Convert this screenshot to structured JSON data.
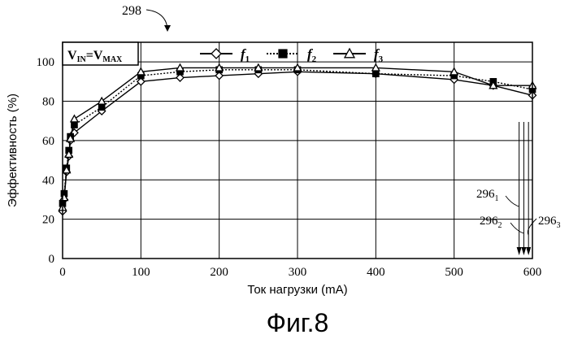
{
  "figure": {
    "number": "298",
    "caption": "Фиг.8",
    "condition": {
      "v": "V",
      "in_sub": "IN",
      "eq": "=",
      "max_sub": "MAX"
    }
  },
  "chart_data": {
    "type": "line",
    "xlabel_text": "Ток нагрузки",
    "xlabel_unit": "(mA)",
    "ylabel_text": "Эффективность",
    "ylabel_unit": "(%)",
    "xlim": [
      0,
      600
    ],
    "ylim": [
      0,
      110
    ],
    "x_ticks": [
      "0",
      "100",
      "200",
      "300",
      "400",
      "500",
      "600"
    ],
    "y_ticks": [
      "0",
      "20",
      "40",
      "60",
      "80",
      "100"
    ],
    "grid": true,
    "legend_position": "top-center",
    "series": [
      {
        "name": "f",
        "sub": "1",
        "marker": "diamond",
        "dash": "solid",
        "x": [
          0,
          2,
          5,
          8,
          10,
          15,
          50,
          100,
          150,
          200,
          250,
          300,
          400,
          500,
          550,
          600
        ],
        "y": [
          24,
          30,
          44,
          52,
          60,
          64,
          75,
          90,
          92,
          93,
          94,
          95,
          94,
          91,
          88,
          83
        ]
      },
      {
        "name": "f",
        "sub": "2",
        "marker": "square",
        "dash": "dotted",
        "x": [
          0,
          2,
          5,
          8,
          10,
          15,
          50,
          100,
          150,
          200,
          250,
          300,
          400,
          500,
          550,
          600
        ],
        "y": [
          28,
          33,
          46,
          55,
          62,
          68,
          77,
          93,
          95,
          96,
          96,
          96,
          94,
          93,
          90,
          86
        ]
      },
      {
        "name": "f",
        "sub": "3",
        "marker": "triangle",
        "dash": "solid",
        "x": [
          0,
          2,
          5,
          8,
          10,
          15,
          50,
          100,
          150,
          200,
          250,
          300,
          400,
          500,
          550,
          600
        ],
        "y": [
          26,
          31,
          45,
          53,
          61,
          71,
          80,
          95,
          97,
          97,
          97,
          97,
          97,
          95,
          88,
          88
        ]
      }
    ],
    "callouts": [
      {
        "label": "296",
        "sub": "1",
        "x": 583
      },
      {
        "label": "296",
        "sub": "2",
        "x": 589
      },
      {
        "label": "296",
        "sub": "3",
        "x": 595
      }
    ]
  }
}
